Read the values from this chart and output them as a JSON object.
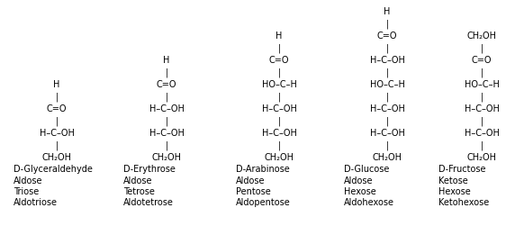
{
  "background_color": "#ffffff",
  "molecules": [
    {
      "name": "D-Glyceraldehyde",
      "labels": [
        "Aldose",
        "Triose",
        "Aldotriose"
      ],
      "rows": [
        [
          "H",
          ""
        ],
        [
          "|",
          ""
        ],
        [
          "C=O",
          ""
        ],
        [
          "|",
          ""
        ],
        [
          "H–C–OH",
          ""
        ],
        [
          "|",
          ""
        ],
        [
          "CH₂OH",
          ""
        ]
      ]
    },
    {
      "name": "D-Erythrose",
      "labels": [
        "Aldose",
        "Tetrose",
        "Aldotetrose"
      ],
      "rows": [
        [
          "H",
          ""
        ],
        [
          "|",
          ""
        ],
        [
          "C=O",
          ""
        ],
        [
          "|",
          ""
        ],
        [
          "H–C–OH",
          ""
        ],
        [
          "|",
          ""
        ],
        [
          "H–C–OH",
          ""
        ],
        [
          "|",
          ""
        ],
        [
          "CH₂OH",
          ""
        ]
      ]
    },
    {
      "name": "D-Arabinose",
      "labels": [
        "Aldose",
        "Pentose",
        "Aldopentose"
      ],
      "rows": [
        [
          "H",
          ""
        ],
        [
          "|",
          ""
        ],
        [
          "C=O",
          ""
        ],
        [
          "|",
          ""
        ],
        [
          "HO–C–H",
          ""
        ],
        [
          "|",
          ""
        ],
        [
          "H–C–OH",
          ""
        ],
        [
          "|",
          ""
        ],
        [
          "H–C–OH",
          ""
        ],
        [
          "|",
          ""
        ],
        [
          "CH₂OH",
          ""
        ]
      ]
    },
    {
      "name": "D-Glucose",
      "labels": [
        "Aldose",
        "Hexose",
        "Aldohexose"
      ],
      "rows": [
        [
          "H",
          ""
        ],
        [
          "|",
          ""
        ],
        [
          "C=O",
          ""
        ],
        [
          "|",
          ""
        ],
        [
          "H–C–OH",
          ""
        ],
        [
          "|",
          ""
        ],
        [
          "HO–C–H",
          ""
        ],
        [
          "|",
          ""
        ],
        [
          "H–C–OH",
          ""
        ],
        [
          "|",
          ""
        ],
        [
          "H–C–OH",
          ""
        ],
        [
          "|",
          ""
        ],
        [
          "CH₂OH",
          ""
        ]
      ]
    },
    {
      "name": "D-Fructose",
      "labels": [
        "Ketose",
        "Hexose",
        "Ketohexose"
      ],
      "rows": [
        [
          "CH₂OH",
          ""
        ],
        [
          "|",
          ""
        ],
        [
          "C=O",
          ""
        ],
        [
          "|",
          ""
        ],
        [
          "HO–C–H",
          ""
        ],
        [
          "|",
          ""
        ],
        [
          "H–C–OH",
          ""
        ],
        [
          "|",
          ""
        ],
        [
          "H–C–OH",
          ""
        ],
        [
          "|",
          ""
        ],
        [
          "CH₂OH",
          ""
        ]
      ]
    }
  ]
}
